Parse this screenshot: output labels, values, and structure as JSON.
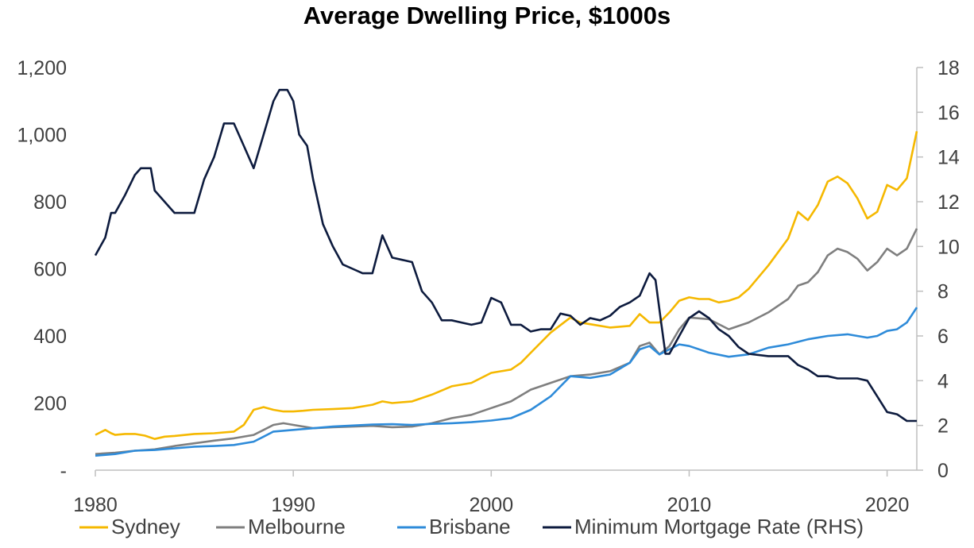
{
  "chart_data": {
    "type": "line",
    "title": "Average Dwelling Price, $1000s",
    "xlabel": "",
    "ylabel": "",
    "x_ticks": [
      "1980",
      "1990",
      "2000",
      "2010",
      "2020"
    ],
    "xlim": [
      1980,
      2021.5
    ],
    "ylim_left": [
      0,
      1200
    ],
    "ylim_right": [
      0,
      18
    ],
    "y_ticks_left": [
      "-",
      "200",
      "400",
      "600",
      "800",
      "1,000",
      "1,200"
    ],
    "y_ticks_right": [
      "0",
      "2",
      "4",
      "6",
      "8",
      "10",
      "12",
      "14",
      "16",
      "18"
    ],
    "grid": false,
    "legend_position": "bottom",
    "series": [
      {
        "name": "Sydney",
        "axis": "left",
        "color": "#F5B800",
        "x": [
          1980,
          1980.5,
          1980.8,
          1981,
          1981.5,
          1982,
          1982.5,
          1983,
          1983.5,
          1984,
          1985,
          1986,
          1987,
          1987.5,
          1988,
          1988.5,
          1989,
          1989.5,
          1990,
          1990.5,
          1991,
          1992,
          1993,
          1994,
          1994.5,
          1995,
          1996,
          1997,
          1998,
          1999,
          2000,
          2000.5,
          2001,
          2001.5,
          2002,
          2003,
          2004,
          2004.5,
          2005,
          2006,
          2007,
          2007.5,
          2008,
          2008.5,
          2009,
          2009.5,
          2010,
          2010.5,
          2011,
          2011.5,
          2012,
          2012.5,
          2013,
          2014,
          2015,
          2015.5,
          2016,
          2016.5,
          2017,
          2017.5,
          2018,
          2018.5,
          2019,
          2019.5,
          2020,
          2020.5,
          2021,
          2021.5
        ],
        "values": [
          105,
          120,
          110,
          105,
          108,
          108,
          103,
          93,
          100,
          102,
          108,
          110,
          115,
          135,
          180,
          188,
          180,
          175,
          175,
          177,
          180,
          182,
          185,
          195,
          205,
          200,
          205,
          225,
          250,
          260,
          290,
          295,
          300,
          320,
          350,
          410,
          455,
          440,
          435,
          425,
          430,
          465,
          440,
          440,
          470,
          505,
          515,
          510,
          510,
          500,
          505,
          515,
          540,
          610,
          690,
          770,
          745,
          790,
          860,
          875,
          855,
          810,
          750,
          770,
          850,
          835,
          870,
          1010
        ]
      },
      {
        "name": "Melbourne",
        "axis": "left",
        "color": "#7F7F7F",
        "x": [
          1980,
          1981,
          1982,
          1983,
          1984,
          1985,
          1986,
          1987,
          1988,
          1988.5,
          1989,
          1989.5,
          1990,
          1991,
          1992,
          1993,
          1994,
          1995,
          1996,
          1997,
          1998,
          1999,
          2000,
          2001,
          2002,
          2003,
          2004,
          2005,
          2006,
          2007,
          2007.5,
          2008,
          2008.5,
          2009,
          2009.5,
          2010,
          2011,
          2012,
          2013,
          2014,
          2015,
          2015.5,
          2016,
          2016.5,
          2017,
          2017.5,
          2018,
          2018.5,
          2019,
          2019.5,
          2020,
          2020.5,
          2021,
          2021.5
        ],
        "values": [
          48,
          52,
          58,
          62,
          72,
          80,
          88,
          95,
          105,
          120,
          135,
          140,
          135,
          125,
          128,
          130,
          132,
          128,
          130,
          140,
          155,
          165,
          185,
          205,
          240,
          260,
          280,
          285,
          295,
          320,
          370,
          380,
          345,
          370,
          420,
          455,
          450,
          420,
          440,
          470,
          510,
          550,
          560,
          590,
          640,
          660,
          650,
          630,
          595,
          620,
          660,
          640,
          660,
          720
        ]
      },
      {
        "name": "Brisbane",
        "axis": "left",
        "color": "#2E8BD9",
        "x": [
          1980,
          1981,
          1982,
          1983,
          1984,
          1985,
          1986,
          1987,
          1988,
          1988.5,
          1989,
          1990,
          1991,
          1992,
          1993,
          1994,
          1995,
          1996,
          1997,
          1998,
          1999,
          2000,
          2001,
          2002,
          2003,
          2004,
          2005,
          2006,
          2007,
          2007.5,
          2008,
          2008.5,
          2009,
          2009.5,
          2010,
          2011,
          2012,
          2013,
          2014,
          2015,
          2016,
          2017,
          2018,
          2019,
          2019.5,
          2020,
          2020.5,
          2021,
          2021.5
        ],
        "values": [
          43,
          48,
          58,
          60,
          65,
          70,
          72,
          75,
          85,
          100,
          115,
          120,
          125,
          130,
          133,
          136,
          137,
          135,
          138,
          140,
          143,
          148,
          155,
          180,
          220,
          280,
          275,
          285,
          320,
          360,
          370,
          345,
          360,
          375,
          370,
          350,
          338,
          345,
          365,
          375,
          390,
          400,
          405,
          395,
          400,
          415,
          420,
          440,
          485
        ]
      },
      {
        "name": "Minimum Mortgage Rate (RHS)",
        "axis": "right",
        "color": "#0D1B3E",
        "x": [
          1980,
          1980.5,
          1980.8,
          1981,
          1981.5,
          1982,
          1982.3,
          1982.8,
          1983,
          1983.5,
          1984,
          1984.5,
          1985,
          1985.5,
          1986,
          1986.5,
          1987,
          1987.5,
          1988,
          1988.5,
          1989,
          1989.3,
          1989.7,
          1990,
          1990.3,
          1990.7,
          1991,
          1991.5,
          1992,
          1992.5,
          1993,
          1993.5,
          1994,
          1994.5,
          1995,
          1995.5,
          1996,
          1996.5,
          1997,
          1997.5,
          1998,
          1998.5,
          1999,
          1999.5,
          2000,
          2000.5,
          2001,
          2001.5,
          2002,
          2002.5,
          2003,
          2003.5,
          2004,
          2004.5,
          2005,
          2005.5,
          2006,
          2006.5,
          2007,
          2007.5,
          2008,
          2008.3,
          2008.6,
          2008.8,
          2009,
          2009.5,
          2010,
          2010.5,
          2011,
          2011.5,
          2012,
          2012.5,
          2013,
          2014,
          2015,
          2015.5,
          2016,
          2016.5,
          2017,
          2017.5,
          2018,
          2018.5,
          2019,
          2019.5,
          2020,
          2020.5,
          2021,
          2021.5
        ],
        "values": [
          9.6,
          10.4,
          11.5,
          11.5,
          12.3,
          13.2,
          13.5,
          13.5,
          12.5,
          12,
          11.5,
          11.5,
          11.5,
          13,
          14,
          15.5,
          15.5,
          14.5,
          13.5,
          15,
          16.5,
          17,
          17,
          16.5,
          15,
          14.5,
          13,
          11,
          10,
          9.2,
          9,
          8.8,
          8.8,
          10.5,
          9.5,
          9.4,
          9.3,
          8,
          7.5,
          6.7,
          6.7,
          6.6,
          6.5,
          6.6,
          7.7,
          7.5,
          6.5,
          6.5,
          6.2,
          6.3,
          6.3,
          7,
          6.9,
          6.5,
          6.8,
          6.7,
          6.9,
          7.3,
          7.5,
          7.8,
          8.8,
          8.5,
          6.5,
          5.2,
          5.2,
          6,
          6.8,
          7.1,
          6.8,
          6.3,
          6,
          5.5,
          5.2,
          5.1,
          5.1,
          4.7,
          4.5,
          4.2,
          4.2,
          4.1,
          4.1,
          4.1,
          4,
          3.3,
          2.6,
          2.5,
          2.2,
          2.2
        ]
      }
    ]
  }
}
